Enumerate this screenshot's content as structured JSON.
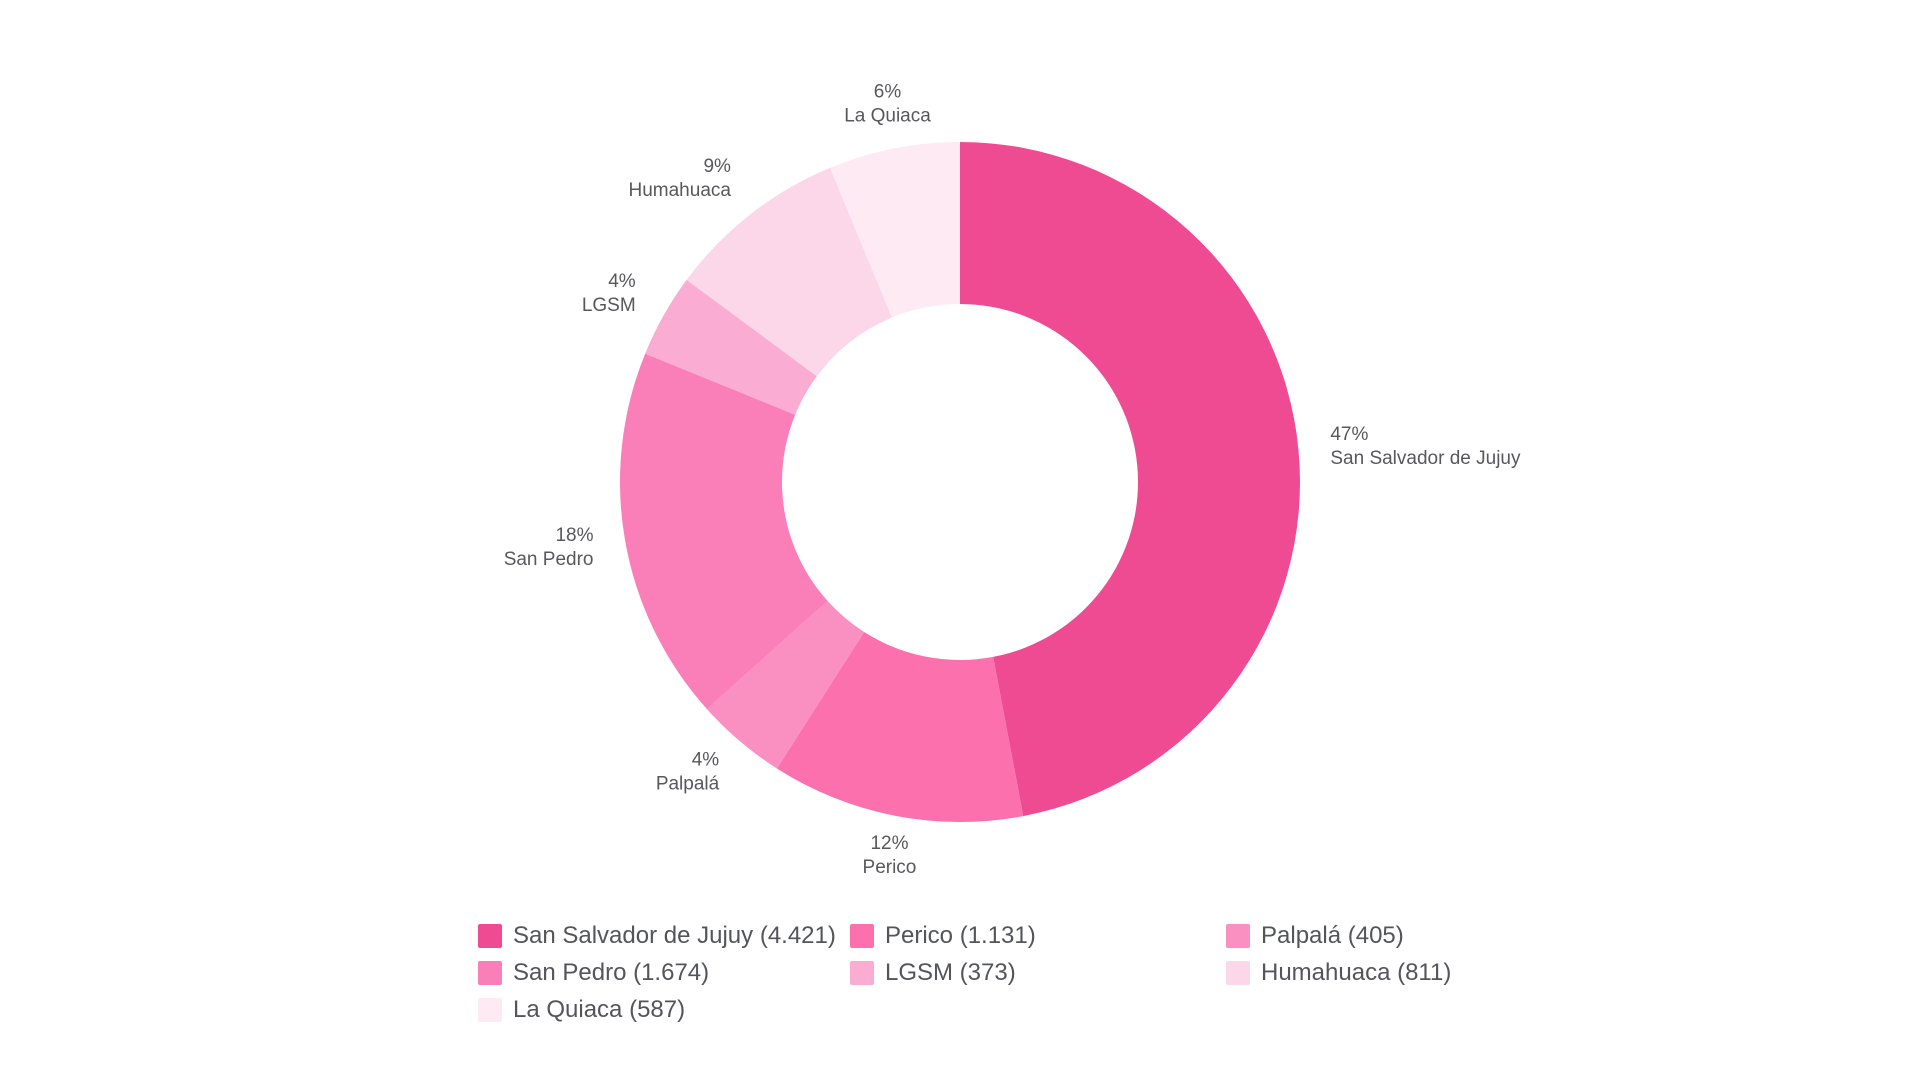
{
  "chart_data": {
    "type": "pie",
    "subtype": "donut",
    "title": "",
    "categories": [
      "San Salvador de Jujuy",
      "Perico",
      "Palpalá",
      "San Pedro",
      "LGSM",
      "Humahuaca",
      "La Quiaca"
    ],
    "values": [
      4421,
      1131,
      405,
      1674,
      373,
      811,
      587
    ],
    "percent_labels": [
      "47%",
      "12%",
      "4%",
      "18%",
      "4%",
      "9%",
      "6%"
    ],
    "value_labels": [
      "4.421",
      "1.131",
      "405",
      "1.674",
      "373",
      "811",
      "587"
    ],
    "colors": [
      "#EF4B92",
      "#FC70AE",
      "#FA8FC2",
      "#FA7FB9",
      "#FBACD3",
      "#FCD6E9",
      "#FDEAF3"
    ],
    "legend_labels": [
      "San Salvador de Jujuy (4.421)",
      "Perico (1.131)",
      "Palpalá (405)",
      "San Pedro (1.674)",
      "LGSM (373)",
      "Humahuaca (811)",
      "La Quiaca (587)"
    ],
    "legend_position": "bottom",
    "direction": "clockwise",
    "start_angle_deg": 0,
    "slice_label_color": "#58585C",
    "legend_text_color": "#53555A",
    "background_color": "#FFFFFF"
  }
}
